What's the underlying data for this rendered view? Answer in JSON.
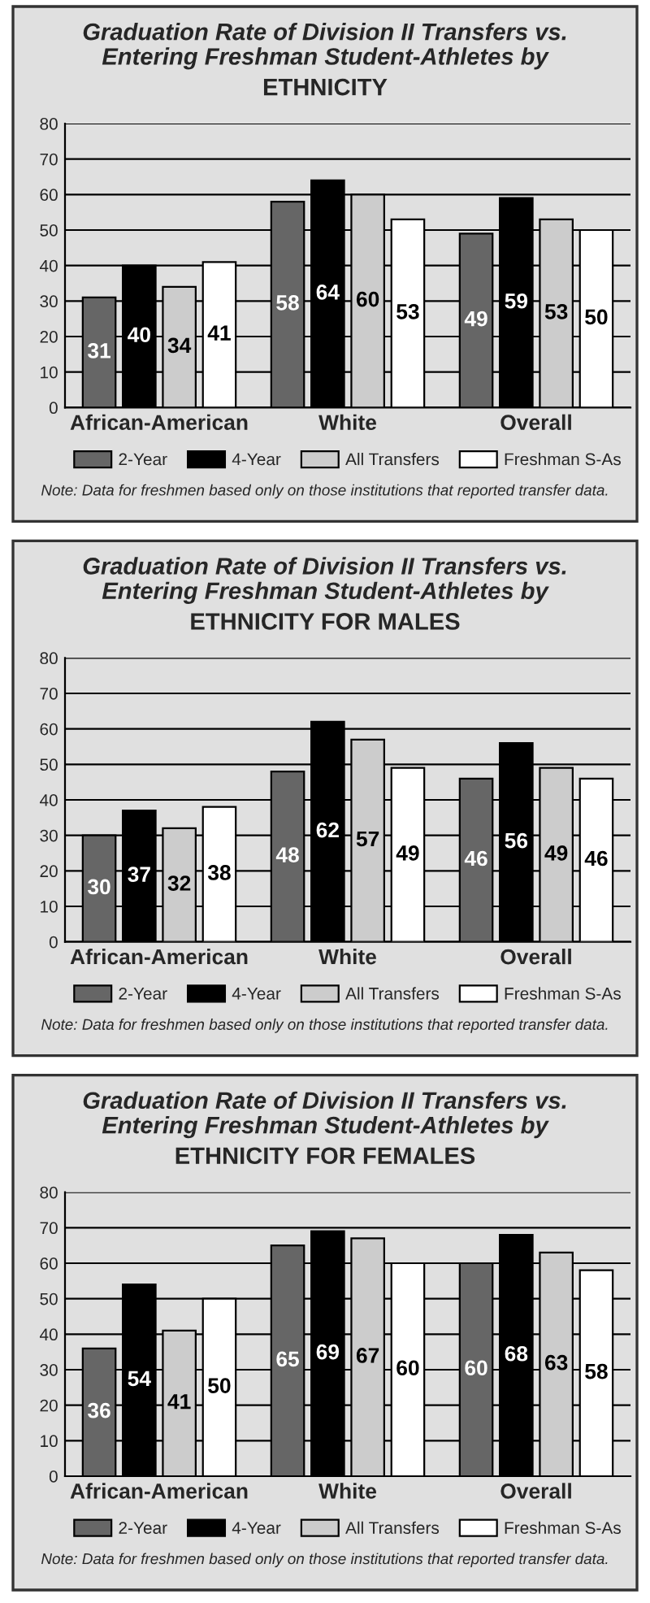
{
  "chart_data": [
    {
      "type": "bar",
      "title": "Graduation Rate of Division II Transfers vs.\nEntering Freshman Student-Athletes by",
      "subtitle": "ETHNICITY",
      "categories": [
        "African-American",
        "White",
        "Overall"
      ],
      "series": [
        {
          "name": "2-Year",
          "color": "#666666",
          "values": [
            31,
            58,
            49
          ]
        },
        {
          "name": "4-Year",
          "color": "#000000",
          "values": [
            40,
            64,
            59
          ]
        },
        {
          "name": "All Transfers",
          "color": "#cccccc",
          "values": [
            34,
            60,
            53
          ]
        },
        {
          "name": "Freshman S-As",
          "color": "#ffffff",
          "values": [
            41,
            53,
            50
          ]
        }
      ],
      "ylim": [
        0,
        80
      ],
      "yticks": [
        0,
        10,
        20,
        30,
        40,
        50,
        60,
        70,
        80
      ],
      "grid": "y",
      "legend": "bottom",
      "data_labels": true,
      "annotations": [
        "Note: Data for freshmen based only on those institutions that reported transfer data."
      ]
    },
    {
      "type": "bar",
      "title": "Graduation Rate of Division II Transfers vs.\nEntering Freshman Student-Athletes by",
      "subtitle": "ETHNICITY FOR MALES",
      "categories": [
        "African-American",
        "White",
        "Overall"
      ],
      "series": [
        {
          "name": "2-Year",
          "color": "#666666",
          "values": [
            30,
            48,
            46
          ]
        },
        {
          "name": "4-Year",
          "color": "#000000",
          "values": [
            37,
            62,
            56
          ]
        },
        {
          "name": "All Transfers",
          "color": "#cccccc",
          "values": [
            32,
            57,
            49
          ]
        },
        {
          "name": "Freshman S-As",
          "color": "#ffffff",
          "values": [
            38,
            49,
            46
          ]
        }
      ],
      "ylim": [
        0,
        80
      ],
      "yticks": [
        0,
        10,
        20,
        30,
        40,
        50,
        60,
        70,
        80
      ],
      "grid": "y",
      "legend": "bottom",
      "data_labels": true,
      "annotations": [
        "Note: Data for freshmen based only on those institutions that reported transfer data."
      ]
    },
    {
      "type": "bar",
      "title": "Graduation Rate of Division II Transfers vs.\nEntering Freshman Student-Athletes by",
      "subtitle": "ETHNICITY FOR FEMALES",
      "categories": [
        "African-American",
        "White",
        "Overall"
      ],
      "series": [
        {
          "name": "2-Year",
          "color": "#666666",
          "values": [
            36,
            65,
            60
          ]
        },
        {
          "name": "4-Year",
          "color": "#000000",
          "values": [
            54,
            69,
            68
          ]
        },
        {
          "name": "All Transfers",
          "color": "#cccccc",
          "values": [
            41,
            67,
            63
          ]
        },
        {
          "name": "Freshman S-As",
          "color": "#ffffff",
          "values": [
            50,
            60,
            58
          ]
        }
      ],
      "ylim": [
        0,
        80
      ],
      "yticks": [
        0,
        10,
        20,
        30,
        40,
        50,
        60,
        70,
        80
      ],
      "grid": "y",
      "legend": "bottom",
      "data_labels": true,
      "annotations": [
        "Note: Data for freshmen based only on those institutions that reported transfer data."
      ]
    }
  ]
}
